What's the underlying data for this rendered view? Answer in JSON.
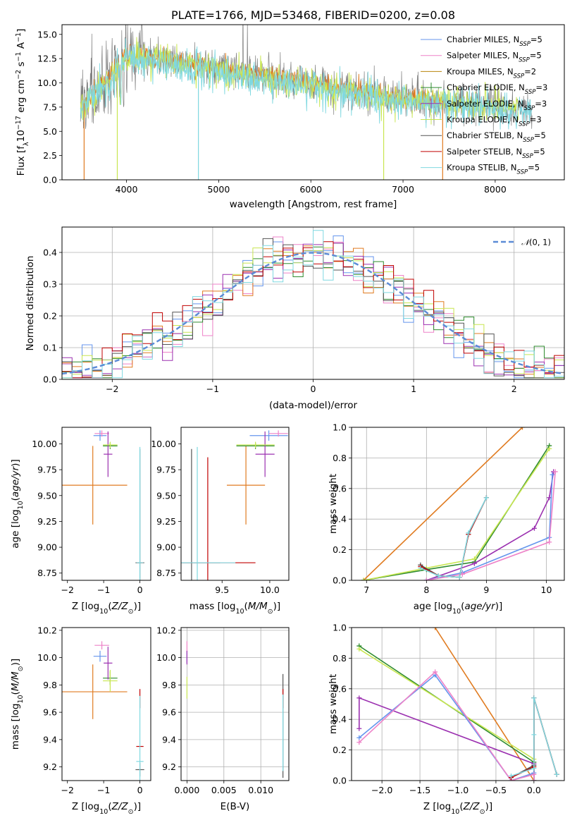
{
  "figure": {
    "title": "PLATE=1766, MJD=53468, FIBERID=0200, z=0.08",
    "series": [
      {
        "name": "Chabrier MILES, N$_{SSP}$=5",
        "color": "#6495ed",
        "ssp": 5
      },
      {
        "name": "Salpeter MILES, N$_{SSP}$=5",
        "color": "#ee82c8",
        "ssp": 5
      },
      {
        "name": "Kroupa MILES, N$_{SSP}$=2",
        "color": "#b8860b",
        "ssp": 2
      },
      {
        "name": "Chabrier ELODIE, N$_{SSP}$=3",
        "color": "#2e8b2e",
        "ssp": 3
      },
      {
        "name": "Salpeter ELODIE, N$_{SSP}$=3",
        "color": "#9b30b0",
        "ssp": 3
      },
      {
        "name": "Kroupa ELODIE, N$_{SSP}$=3",
        "color": "#c8e650",
        "ssp": 3
      },
      {
        "name": "Chabrier STELIB, N$_{SSP}$=5",
        "color": "#555555",
        "ssp": 5
      },
      {
        "name": "Salpeter STELIB, N$_{SSP}$=5",
        "color": "#c00000",
        "ssp": 5
      },
      {
        "name": "Kroupa STELIB, N$_{SSP}$=5",
        "color": "#7fd8e0",
        "ssp": 5
      }
    ],
    "legend": {
      "items": [
        {
          "label": "Chabrier MILES, N",
          "sub": "SSP",
          "tail": "=5"
        },
        {
          "label": "Salpeter MILES, N",
          "sub": "SSP",
          "tail": "=5"
        },
        {
          "label": "Kroupa MILES, N",
          "sub": "SSP",
          "tail": "=2"
        },
        {
          "label": "Chabrier ELODIE, N",
          "sub": "SSP",
          "tail": "=3"
        },
        {
          "label": "Salpeter ELODIE, N",
          "sub": "SSP",
          "tail": "=3"
        },
        {
          "label": "Kroupa ELODIE, N",
          "sub": "SSP",
          "tail": "=3"
        },
        {
          "label": "Chabrier STELIB, N",
          "sub": "SSP",
          "tail": "=5"
        },
        {
          "label": "Salpeter STELIB, N",
          "sub": "SSP",
          "tail": "=5"
        },
        {
          "label": "Kroupa STELIB, N",
          "sub": "SSP",
          "tail": "=5"
        }
      ]
    }
  },
  "chart_data": [
    {
      "id": "spectrum",
      "type": "line",
      "title": "PLATE=1766, MJD=53468, FIBERID=0200, z=0.08",
      "xlabel": "wavelength [Angstrom, rest frame]",
      "ylabel": "Flux [f_λ 10^-17 erg cm^-2 s^-1 A^-1]",
      "xlim": [
        3300,
        8750
      ],
      "ylim": [
        0,
        16
      ],
      "xticks": [
        4000,
        5000,
        6000,
        7000,
        8000
      ],
      "yticks": [
        0.0,
        2.5,
        5.0,
        7.5,
        10.0,
        12.5,
        15.0
      ],
      "legend": "upper right",
      "data_wavelength_range": [
        3500,
        8400
      ],
      "continuum_anchors": {
        "x": [
          3500,
          3800,
          4000,
          4500,
          5000,
          5500,
          6000,
          6500,
          7000,
          7500,
          8000,
          8400
        ],
        "y": [
          7.5,
          10.5,
          13.0,
          12.3,
          11.5,
          10.7,
          10.0,
          9.2,
          8.5,
          8.1,
          7.7,
          7.3
        ]
      }
    },
    {
      "id": "residuals",
      "type": "histogram",
      "xlabel": "(data-model)/error",
      "ylabel": "Normed distribution",
      "xlim": [
        -2.5,
        2.5
      ],
      "ylim": [
        0,
        0.48
      ],
      "xticks": [
        -2,
        -1,
        0,
        1,
        2
      ],
      "yticks": [
        0.0,
        0.1,
        0.2,
        0.3,
        0.4
      ],
      "grid": true,
      "legend": "upper right",
      "reference": {
        "name": "N(0,1)",
        "type": "gaussian",
        "mu": 0,
        "sigma": 1,
        "color": "#5b8bd6"
      },
      "bin_width": 0.1
    },
    {
      "id": "age-vs-Z",
      "type": "errorbar",
      "xlabel": "Z [log10(Z/Z☉)]",
      "ylabel": "age [log10(age/yr)]",
      "xlim": [
        -2.15,
        0.3
      ],
      "ylim": [
        8.68,
        10.16
      ],
      "xticks": [
        -2,
        -1,
        0
      ],
      "yticks": [
        8.75,
        9.0,
        9.25,
        9.5,
        9.75,
        10.0
      ],
      "points": [
        {
          "series": 2,
          "x": -1.3,
          "xerr": 0.95,
          "y": 9.6,
          "yerr": 0.38,
          "color": "#e07b20"
        },
        {
          "series": 0,
          "x": -1.1,
          "xerr": 0.18,
          "y": 10.08,
          "yerr": 0.05,
          "color": "#6495ed"
        },
        {
          "series": 1,
          "x": -1.05,
          "xerr": 0.2,
          "y": 10.1,
          "yerr": 0.03,
          "color": "#ee82c8"
        },
        {
          "series": 3,
          "x": -0.82,
          "xerr": 0.2,
          "y": 9.98,
          "yerr": 0.03,
          "color": "#2e8b2e"
        },
        {
          "series": 4,
          "x": -0.88,
          "xerr": 0.12,
          "y": 9.9,
          "yerr": 0.22,
          "color": "#9b30b0"
        },
        {
          "series": 5,
          "x": -0.82,
          "xerr": 0.2,
          "y": 9.99,
          "yerr": 0.03,
          "color": "#c8e650"
        },
        {
          "series": 6,
          "x": 0.0,
          "xerr": 0.12,
          "y": 8.85,
          "yerr": 1.1,
          "color": "#555555"
        },
        {
          "series": 7,
          "x": 0.0,
          "xerr": 0.1,
          "y": 8.85,
          "yerr": 0.0,
          "color": "#c00000"
        },
        {
          "series": 8,
          "x": 0.0,
          "xerr": 0.1,
          "y": 8.85,
          "yerr": 1.12,
          "color": "#7fd8e0"
        }
      ]
    },
    {
      "id": "age-vs-mass",
      "type": "errorbar",
      "xlabel": "mass [log10(M/M☉)]",
      "ylabel": "",
      "xlim": [
        9.07,
        10.2
      ],
      "ylim": [
        8.68,
        10.16
      ],
      "xticks": [
        9.5,
        10.0
      ],
      "yticks": [
        8.75,
        9.0,
        9.25,
        9.5,
        9.75,
        10.0
      ],
      "points": [
        {
          "series": 2,
          "x": 9.75,
          "xerr": 0.2,
          "y": 9.6,
          "yerr": 0.38,
          "color": "#e07b20"
        },
        {
          "series": 0,
          "x": 9.99,
          "xerr": 0.2,
          "y": 10.08,
          "yerr": 0.05,
          "color": "#6495ed"
        },
        {
          "series": 1,
          "x": 10.09,
          "xerr": 0.1,
          "y": 10.1,
          "yerr": 0.03,
          "color": "#ee82c8"
        },
        {
          "series": 3,
          "x": 9.85,
          "xerr": 0.2,
          "y": 9.98,
          "yerr": 0.03,
          "color": "#2e8b2e"
        },
        {
          "series": 4,
          "x": 9.95,
          "xerr": 0.1,
          "y": 9.9,
          "yerr": 0.22,
          "color": "#9b30b0"
        },
        {
          "series": 5,
          "x": 9.85,
          "xerr": 0.2,
          "y": 9.99,
          "yerr": 0.03,
          "color": "#c8e650"
        },
        {
          "series": 6,
          "x": 9.18,
          "xerr": 0.3,
          "y": 8.85,
          "yerr": 1.1,
          "color": "#555555"
        },
        {
          "series": 7,
          "x": 9.35,
          "xerr": 0.5,
          "y": 8.85,
          "yerr": 1.02,
          "color": "#c00000"
        },
        {
          "series": 8,
          "x": 9.24,
          "xerr": 0.4,
          "y": 8.85,
          "yerr": 1.12,
          "color": "#7fd8e0"
        }
      ]
    },
    {
      "id": "massweight-vs-age",
      "type": "line",
      "xlabel": "age [log10(age/yr)]",
      "ylabel": "mass weight",
      "xlim": [
        6.75,
        10.3
      ],
      "ylim": [
        0,
        1.0
      ],
      "xticks": [
        7,
        8,
        9,
        10
      ],
      "yticks": [
        0.0,
        0.2,
        0.4,
        0.6,
        0.8,
        1.0
      ],
      "grid": true,
      "series": [
        {
          "name": "Kroupa MILES",
          "color": "#e07b20",
          "x": [
            6.95,
            9.6
          ],
          "y": [
            0.0,
            1.0
          ]
        },
        {
          "name": "Chabrier ELODIE",
          "color": "#2e8b2e",
          "x": [
            6.95,
            8.0,
            8.8,
            10.05
          ],
          "y": [
            0.0,
            0.07,
            0.12,
            0.88
          ]
        },
        {
          "name": "Kroupa ELODIE",
          "color": "#c8e650",
          "x": [
            6.95,
            8.0,
            8.8,
            10.05
          ],
          "y": [
            0.0,
            0.08,
            0.14,
            0.86
          ]
        },
        {
          "name": "Salpeter ELODIE",
          "color": "#9b30b0",
          "x": [
            8.0,
            8.8,
            9.8,
            10.05,
            10.12
          ],
          "y": [
            0.0,
            0.11,
            0.34,
            0.54,
            0.71
          ]
        },
        {
          "name": "Chabrier MILES",
          "color": "#6495ed",
          "x": [
            8.0,
            8.6,
            10.05,
            10.1
          ],
          "y": [
            0.0,
            0.05,
            0.28,
            0.69
          ]
        },
        {
          "name": "Salpeter MILES",
          "color": "#ee82c8",
          "x": [
            8.0,
            8.6,
            10.05,
            10.15
          ],
          "y": [
            0.0,
            0.04,
            0.25,
            0.71
          ]
        },
        {
          "name": "Chabrier STELIB",
          "color": "#555555",
          "x": [
            7.9,
            8.2,
            8.55,
            8.7,
            9.0
          ],
          "y": [
            0.1,
            0.03,
            0.02,
            0.3,
            0.54
          ]
        },
        {
          "name": "Salpeter STELIB",
          "color": "#c00000",
          "x": [
            7.9,
            8.2,
            8.55,
            8.7,
            9.0
          ],
          "y": [
            0.09,
            0.03,
            0.02,
            0.3,
            0.54
          ]
        },
        {
          "name": "Kroupa STELIB",
          "color": "#7fd8e0",
          "x": [
            7.9,
            8.2,
            8.55,
            8.7,
            9.0
          ],
          "y": [
            0.08,
            0.03,
            0.02,
            0.31,
            0.54
          ]
        }
      ]
    },
    {
      "id": "mass-vs-Z",
      "type": "errorbar",
      "xlabel": "Z [log10(Z/Z☉)]",
      "ylabel": "mass [log10(M/M☉)]",
      "xlim": [
        -2.15,
        0.3
      ],
      "ylim": [
        9.1,
        10.22
      ],
      "xticks": [
        -2,
        -1,
        0
      ],
      "yticks": [
        9.2,
        9.4,
        9.6,
        9.8,
        10.0,
        10.2
      ],
      "points": [
        {
          "series": 2,
          "x": -1.3,
          "xerr": 0.95,
          "y": 9.75,
          "yerr": 0.2,
          "color": "#e07b20"
        },
        {
          "series": 0,
          "x": -1.1,
          "xerr": 0.18,
          "y": 10.01,
          "yerr": 0.04,
          "color": "#6495ed"
        },
        {
          "series": 1,
          "x": -1.05,
          "xerr": 0.2,
          "y": 10.09,
          "yerr": 0.03,
          "color": "#ee82c8"
        },
        {
          "series": 3,
          "x": -0.82,
          "xerr": 0.2,
          "y": 9.85,
          "yerr": 0.05,
          "color": "#2e8b2e"
        },
        {
          "series": 4,
          "x": -0.88,
          "xerr": 0.12,
          "y": 9.96,
          "yerr": 0.12,
          "color": "#9b30b0"
        },
        {
          "series": 5,
          "x": -0.82,
          "xerr": 0.2,
          "y": 9.83,
          "yerr": 0.08,
          "color": "#c8e650"
        },
        {
          "series": 6,
          "x": 0.0,
          "xerr": 0.12,
          "y": 9.18,
          "yerr": 0.05,
          "color": "#555555"
        },
        {
          "series": 7,
          "x": 0.0,
          "xerr": 0.1,
          "y": 9.35,
          "yerr": 0.0,
          "color": "#c00000"
        },
        {
          "series": 7,
          "x": 0.0,
          "xerr": 0.0,
          "y": 9.7,
          "yerr": 0.07,
          "color": "#c00000"
        },
        {
          "series": 8,
          "x": 0.0,
          "xerr": 0.1,
          "y": 9.24,
          "yerr": 0.48,
          "color": "#7fd8e0"
        }
      ]
    },
    {
      "id": "mass-vs-EBV",
      "type": "errorbar",
      "xlabel": "E(B-V)",
      "ylabel": "",
      "xlim": [
        -0.0008,
        0.0138
      ],
      "ylim": [
        9.1,
        10.22
      ],
      "xticks": [
        0.0,
        0.005,
        0.01
      ],
      "yticks": [
        9.2,
        9.4,
        9.6,
        9.8,
        10.0,
        10.2
      ],
      "points": [
        {
          "series": 0,
          "x": 0.0,
          "xerr": 0.0,
          "y": 10.0,
          "yerr": 0.04,
          "color": "#6495ed"
        },
        {
          "series": 1,
          "x": 0.0,
          "xerr": 0.0,
          "y": 10.08,
          "yerr": 0.04,
          "color": "#ee82c8"
        },
        {
          "series": 4,
          "x": 0.0,
          "xerr": 0.0,
          "y": 10.0,
          "yerr": 0.05,
          "color": "#9b30b0"
        },
        {
          "series": 5,
          "x": 0.0,
          "xerr": 0.0,
          "y": 9.78,
          "yerr": 0.08,
          "color": "#c8e650"
        },
        {
          "series": 6,
          "x": 0.013,
          "xerr": 0.0,
          "y": 9.5,
          "yerr": 0.38,
          "color": "#555555"
        },
        {
          "series": 7,
          "x": 0.013,
          "xerr": 0.0,
          "y": 9.7,
          "yerr": 0.07,
          "color": "#c00000"
        },
        {
          "series": 8,
          "x": 0.013,
          "xerr": 0.0,
          "y": 9.45,
          "yerr": 0.28,
          "color": "#7fd8e0"
        }
      ]
    },
    {
      "id": "massweight-vs-Z",
      "type": "line",
      "xlabel": "Z [log10(Z/Z☉)]",
      "ylabel": "mass weight",
      "xlim": [
        -2.4,
        0.4
      ],
      "ylim": [
        0,
        1.0
      ],
      "xticks": [
        -2.0,
        -1.5,
        -1.0,
        -0.5,
        0.0
      ],
      "yticks": [
        0.0,
        0.2,
        0.4,
        0.6,
        0.8,
        1.0
      ],
      "grid": true,
      "series": [
        {
          "name": "Kroupa MILES",
          "color": "#e07b20",
          "x": [
            -1.3,
            0.0
          ],
          "y": [
            1.0,
            0.0
          ]
        },
        {
          "name": "Chabrier ELODIE",
          "color": "#2e8b2e",
          "x": [
            -2.3,
            0.0,
            0.0
          ],
          "y": [
            0.88,
            0.12,
            0.0
          ]
        },
        {
          "name": "Kroupa ELODIE",
          "color": "#c8e650",
          "x": [
            -2.3,
            0.0,
            0.0
          ],
          "y": [
            0.86,
            0.14,
            0.0
          ]
        },
        {
          "name": "Salpeter ELODIE",
          "color": "#9b30b0",
          "x": [
            -2.3,
            -2.3,
            0.0,
            0.0
          ],
          "y": [
            0.34,
            0.54,
            0.11,
            0.0
          ]
        },
        {
          "name": "Chabrier MILES",
          "color": "#6495ed",
          "x": [
            -2.3,
            -1.3,
            -0.3,
            0.0,
            0.0
          ],
          "y": [
            0.28,
            0.69,
            0.0,
            0.05,
            0.0
          ]
        },
        {
          "name": "Salpeter MILES",
          "color": "#ee82c8",
          "x": [
            -2.3,
            -1.3,
            -0.3,
            0.0,
            0.0
          ],
          "y": [
            0.25,
            0.71,
            0.0,
            0.04,
            0.0
          ]
        },
        {
          "name": "Chabrier STELIB",
          "color": "#555555",
          "x": [
            -0.3,
            0.0,
            0.0,
            0.3
          ],
          "y": [
            0.02,
            0.1,
            0.54,
            0.04
          ]
        },
        {
          "name": "Salpeter STELIB",
          "color": "#c00000",
          "x": [
            -0.3,
            0.0,
            0.0,
            0.3
          ],
          "y": [
            0.02,
            0.09,
            0.54,
            0.04
          ]
        },
        {
          "name": "Kroupa STELIB",
          "color": "#7fd8e0",
          "x": [
            -0.3,
            0.0,
            0.0,
            0.0,
            0.3
          ],
          "y": [
            0.03,
            0.08,
            0.3,
            0.54,
            0.04
          ]
        }
      ]
    }
  ]
}
